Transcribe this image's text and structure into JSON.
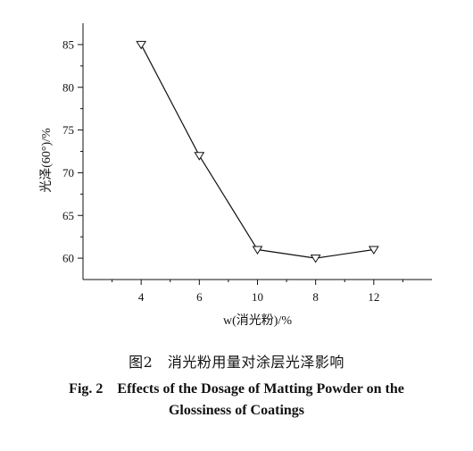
{
  "chart_data": {
    "type": "line",
    "categories": [
      "4",
      "6",
      "10",
      "8",
      "12"
    ],
    "series": [
      {
        "values": [
          85,
          72,
          61,
          60,
          61
        ]
      }
    ],
    "ylabel": "光泽(60°)/%",
    "xlabel": "w(消光粉)/%",
    "ylim": [
      57.5,
      87.5
    ],
    "yticks": [
      60,
      65,
      70,
      75,
      80,
      85
    ],
    "marker": "open-down-triangle",
    "grid": false,
    "legend": "none",
    "line_color": "#111111"
  },
  "caption": {
    "cn": "图2　消光粉用量对涂层光泽影响",
    "en_line1": "Fig. 2　Effects of the Dosage of Matting Powder on the",
    "en_line2": "Glossiness of Coatings"
  }
}
